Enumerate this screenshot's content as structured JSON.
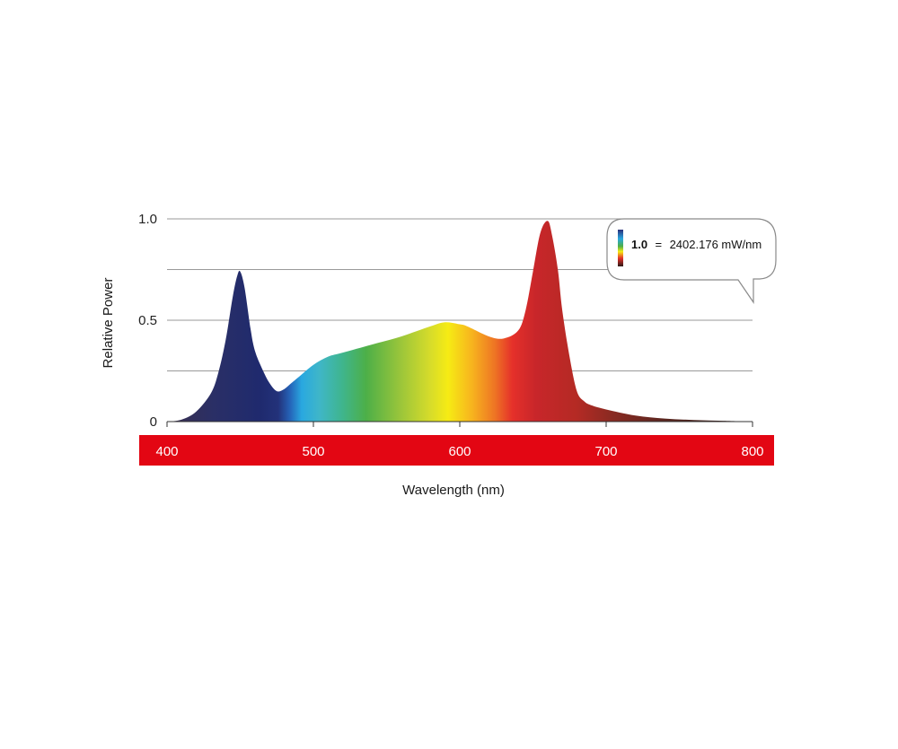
{
  "chart_data": {
    "type": "area",
    "title": "",
    "xlabel": "Wavelength (nm)",
    "ylabel": "Relative Power",
    "xlim": [
      400,
      800
    ],
    "ylim": [
      0,
      1.0
    ],
    "x_ticks": [
      "400",
      "500",
      "600",
      "700",
      "800"
    ],
    "y_ticks": [
      "0",
      "0.5",
      "1.0"
    ],
    "gridlines_y": [
      0.25,
      0.5,
      0.75,
      1.0
    ],
    "grid": true,
    "fill": "visible-spectrum gradient",
    "axis_band_color": "#e30613",
    "callout": {
      "value_label": "1.0",
      "equals": "=",
      "text": "2402.176 mW/nm"
    },
    "series": [
      {
        "x": [
          400,
          410,
          420,
          430,
          435,
          440,
          445,
          448,
          450,
          453,
          457,
          460,
          465,
          470,
          475,
          480,
          485,
          490,
          500,
          510,
          520,
          540,
          560,
          580,
          590,
          600,
          605,
          620,
          630,
          640,
          645,
          650,
          655,
          660,
          663,
          667,
          670,
          675,
          680,
          685,
          690,
          700,
          720,
          740,
          760,
          780,
          800
        ],
        "values": [
          0.0,
          0.01,
          0.05,
          0.14,
          0.24,
          0.4,
          0.62,
          0.72,
          0.74,
          0.66,
          0.46,
          0.35,
          0.26,
          0.19,
          0.15,
          0.16,
          0.19,
          0.22,
          0.28,
          0.32,
          0.34,
          0.38,
          0.42,
          0.47,
          0.49,
          0.48,
          0.47,
          0.42,
          0.41,
          0.45,
          0.55,
          0.74,
          0.93,
          0.99,
          0.92,
          0.75,
          0.55,
          0.32,
          0.15,
          0.1,
          0.08,
          0.06,
          0.03,
          0.015,
          0.008,
          0.004,
          0.0
        ]
      }
    ]
  }
}
